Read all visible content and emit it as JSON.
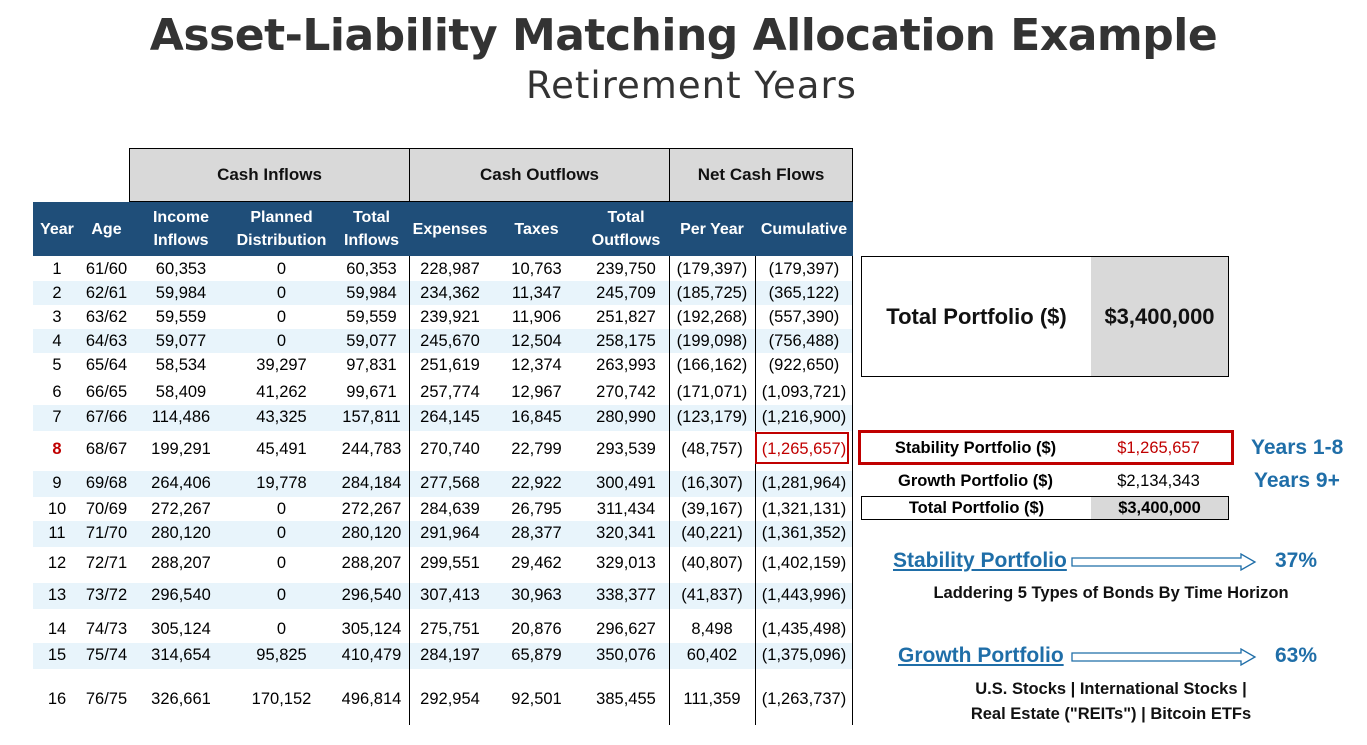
{
  "title": "Asset-Liability Matching Allocation Example",
  "subtitle": "Retirement Years",
  "groups": {
    "inflows": "Cash Inflows",
    "outflows": "Cash Outflows",
    "net": "Net Cash Flows"
  },
  "columns": {
    "year": "Year",
    "age": "Age",
    "income_inflows": "Income Inflows",
    "planned_distribution": "Planned Distribution",
    "total_inflows": "Total Inflows",
    "expenses": "Expenses",
    "taxes": "Taxes",
    "total_outflows": "Total Outflows",
    "per_year": "Per Year",
    "cumulative": "Cumulative"
  },
  "rows": [
    {
      "year": "1",
      "age": "61/60",
      "income": "60,353",
      "planned": "0",
      "total_in": "60,353",
      "expenses": "228,987",
      "taxes": "10,763",
      "total_out": "239,750",
      "per_year": "(179,397)",
      "cumulative": "(179,397)"
    },
    {
      "year": "2",
      "age": "62/61",
      "income": "59,984",
      "planned": "0",
      "total_in": "59,984",
      "expenses": "234,362",
      "taxes": "11,347",
      "total_out": "245,709",
      "per_year": "(185,725)",
      "cumulative": "(365,122)"
    },
    {
      "year": "3",
      "age": "63/62",
      "income": "59,559",
      "planned": "0",
      "total_in": "59,559",
      "expenses": "239,921",
      "taxes": "11,906",
      "total_out": "251,827",
      "per_year": "(192,268)",
      "cumulative": "(557,390)"
    },
    {
      "year": "4",
      "age": "64/63",
      "income": "59,077",
      "planned": "0",
      "total_in": "59,077",
      "expenses": "245,670",
      "taxes": "12,504",
      "total_out": "258,175",
      "per_year": "(199,098)",
      "cumulative": "(756,488)"
    },
    {
      "year": "5",
      "age": "65/64",
      "income": "58,534",
      "planned": "39,297",
      "total_in": "97,831",
      "expenses": "251,619",
      "taxes": "12,374",
      "total_out": "263,993",
      "per_year": "(166,162)",
      "cumulative": "(922,650)"
    },
    {
      "year": "6",
      "age": "66/65",
      "income": "58,409",
      "planned": "41,262",
      "total_in": "99,671",
      "expenses": "257,774",
      "taxes": "12,967",
      "total_out": "270,742",
      "per_year": "(171,071)",
      "cumulative": "(1,093,721)"
    },
    {
      "year": "7",
      "age": "67/66",
      "income": "114,486",
      "planned": "43,325",
      "total_in": "157,811",
      "expenses": "264,145",
      "taxes": "16,845",
      "total_out": "280,990",
      "per_year": "(123,179)",
      "cumulative": "(1,216,900)"
    },
    {
      "year": "8",
      "age": "68/67",
      "income": "199,291",
      "planned": "45,491",
      "total_in": "244,783",
      "expenses": "270,740",
      "taxes": "22,799",
      "total_out": "293,539",
      "per_year": "(48,757)",
      "cumulative": "(1,265,657)"
    },
    {
      "year": "9",
      "age": "69/68",
      "income": "264,406",
      "planned": "19,778",
      "total_in": "284,184",
      "expenses": "277,568",
      "taxes": "22,922",
      "total_out": "300,491",
      "per_year": "(16,307)",
      "cumulative": "(1,281,964)"
    },
    {
      "year": "10",
      "age": "70/69",
      "income": "272,267",
      "planned": "0",
      "total_in": "272,267",
      "expenses": "284,639",
      "taxes": "26,795",
      "total_out": "311,434",
      "per_year": "(39,167)",
      "cumulative": "(1,321,131)"
    },
    {
      "year": "11",
      "age": "71/70",
      "income": "280,120",
      "planned": "0",
      "total_in": "280,120",
      "expenses": "291,964",
      "taxes": "28,377",
      "total_out": "320,341",
      "per_year": "(40,221)",
      "cumulative": "(1,361,352)"
    },
    {
      "year": "12",
      "age": "72/71",
      "income": "288,207",
      "planned": "0",
      "total_in": "288,207",
      "expenses": "299,551",
      "taxes": "29,462",
      "total_out": "329,013",
      "per_year": "(40,807)",
      "cumulative": "(1,402,159)"
    },
    {
      "year": "13",
      "age": "73/72",
      "income": "296,540",
      "planned": "0",
      "total_in": "296,540",
      "expenses": "307,413",
      "taxes": "30,963",
      "total_out": "338,377",
      "per_year": "(41,837)",
      "cumulative": "(1,443,996)"
    },
    {
      "year": "14",
      "age": "74/73",
      "income": "305,124",
      "planned": "0",
      "total_in": "305,124",
      "expenses": "275,751",
      "taxes": "20,876",
      "total_out": "296,627",
      "per_year": "8,498",
      "cumulative": "(1,435,498)"
    },
    {
      "year": "15",
      "age": "75/74",
      "income": "314,654",
      "planned": "95,825",
      "total_in": "410,479",
      "expenses": "284,197",
      "taxes": "65,879",
      "total_out": "350,076",
      "per_year": "60,402",
      "cumulative": "(1,375,096)"
    },
    {
      "year": "16",
      "age": "76/75",
      "income": "326,661",
      "planned": "170,152",
      "total_in": "496,814",
      "expenses": "292,954",
      "taxes": "92,501",
      "total_out": "385,455",
      "per_year": "111,359",
      "cumulative": "(1,263,737)"
    }
  ],
  "summary": {
    "total_label": "Total Portfolio ($)",
    "total_value": "$3,400,000",
    "stability_label": "Stability Portfolio ($)",
    "stability_value": "$1,265,657",
    "growth_label": "Growth Portfolio ($)",
    "growth_value": "$2,134,343",
    "total2_label": "Total Portfolio ($)",
    "total2_value": "$3,400,000",
    "stability_years": "Years 1-8",
    "growth_years": "Years 9+"
  },
  "allocation": {
    "stability_name": "Stability Portfolio",
    "stability_pct": "37%",
    "stability_desc": "Laddering 5 Types of Bonds By Time Horizon",
    "growth_name": "Growth Portfolio",
    "growth_pct": "63%",
    "growth_desc_1": "U.S. Stocks | International Stocks |",
    "growth_desc_2": "Real Estate (\"REITs\") | Bitcoin ETFs"
  },
  "colors": {
    "header_blue": "#1f4e79",
    "accent_blue": "#1f6ea8",
    "highlight_red": "#c00000",
    "band": "#e8f4fb",
    "grey": "#d9d9d9"
  }
}
